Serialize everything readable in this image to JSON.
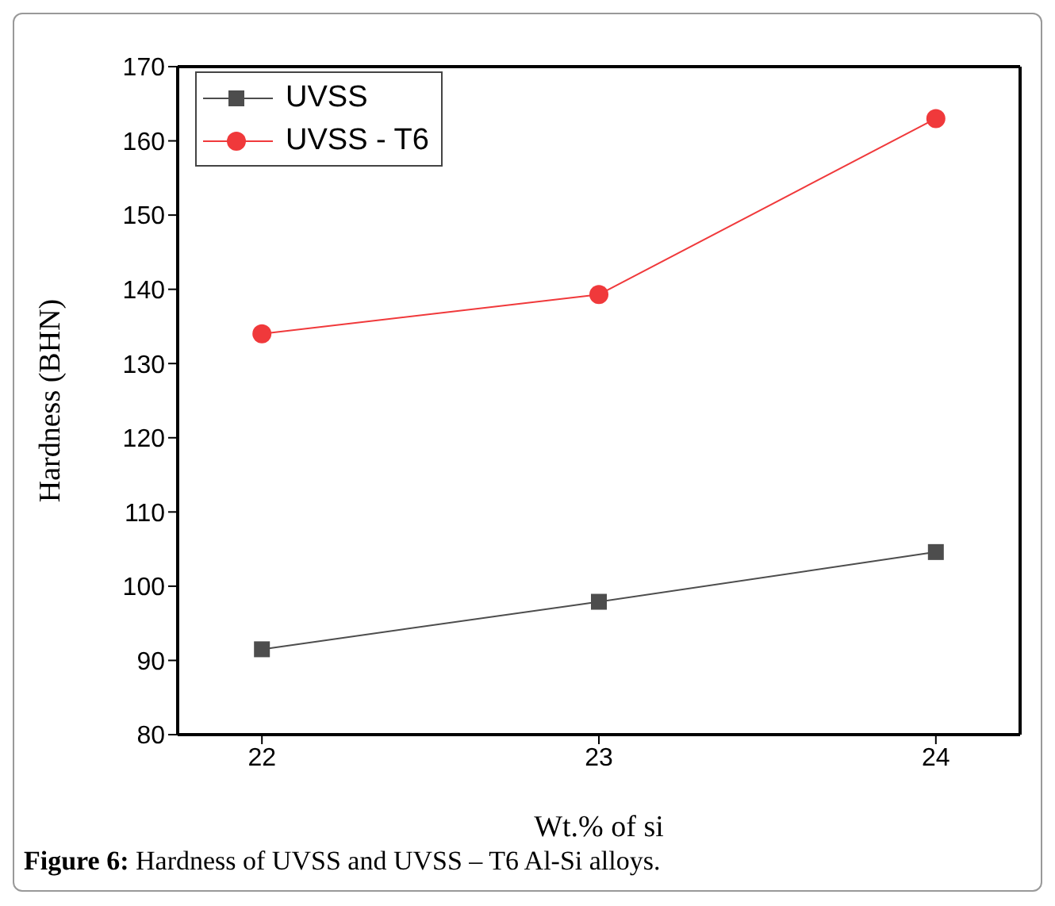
{
  "chart_data": {
    "type": "line",
    "xlabel": "Wt.% of si",
    "ylabel": "Hardness (BHN)",
    "x": [
      22,
      23,
      24
    ],
    "series": [
      {
        "name": "UVSS",
        "color": "#4d4d4d",
        "values": [
          91.5,
          97.9,
          104.6
        ],
        "marker": "square"
      },
      {
        "name": "UVSS - T6",
        "color": "#f0393b",
        "values": [
          134.0,
          139.3,
          163.0
        ],
        "marker": "circle"
      }
    ],
    "xlim": [
      21.75,
      24.25
    ],
    "xticks": [
      22,
      23,
      24
    ],
    "ylim": [
      80,
      170
    ],
    "yticks": [
      80,
      90,
      100,
      110,
      120,
      130,
      140,
      150,
      160,
      170
    ],
    "grid": false,
    "legend": "top left",
    "line_style": "solid",
    "annotations": [
      "Figure 6: Hardness of UVSS and UVSS – T6 Al-Si alloys."
    ]
  }
}
